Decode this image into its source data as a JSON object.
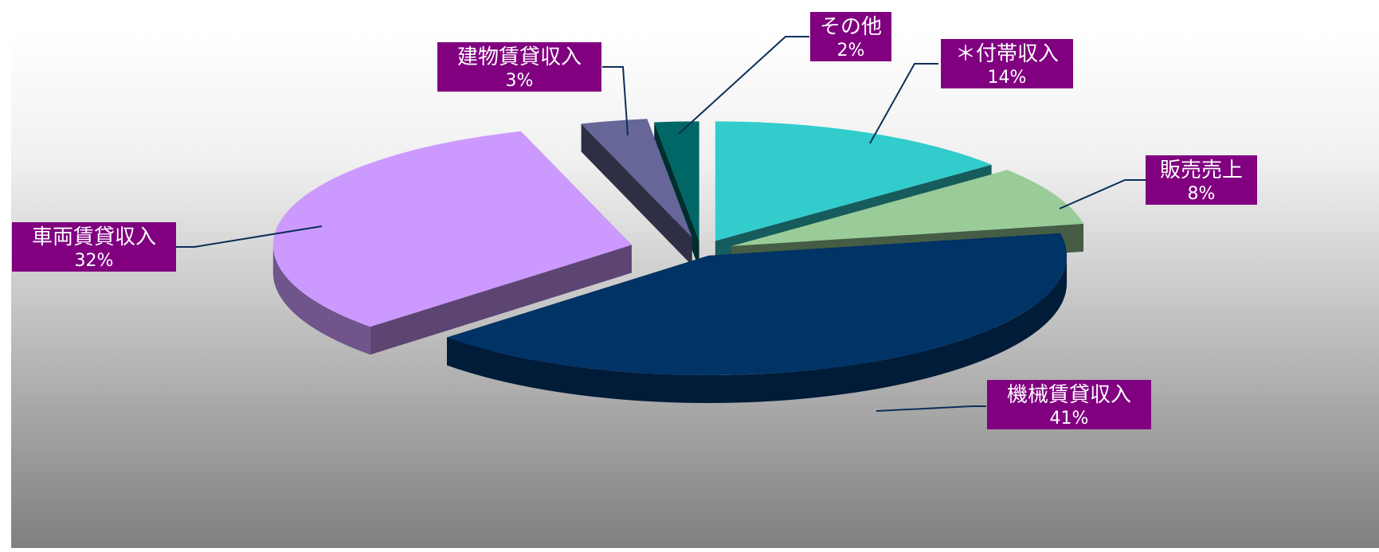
{
  "chart_data": {
    "type": "pie",
    "style": "3d-exploded",
    "title": "",
    "legend": "none",
    "slices": [
      {
        "name": "＊付帯収入",
        "percent_label": "14%",
        "value": 14,
        "color": "#33cccc"
      },
      {
        "name": "販売売上",
        "percent_label": "8%",
        "value": 8,
        "color": "#99cc99"
      },
      {
        "name": "機械賃貸収入",
        "percent_label": "41%",
        "value": 41,
        "color": "#003366"
      },
      {
        "name": "車両賃貸収入",
        "percent_label": "32%",
        "value": 32,
        "color": "#cc99ff"
      },
      {
        "name": "建物賃貸収入",
        "percent_label": "3%",
        "value": 3,
        "color": "#666699"
      },
      {
        "name": "その他",
        "percent_label": "2%",
        "value": 2,
        "color": "#006666"
      }
    ]
  }
}
